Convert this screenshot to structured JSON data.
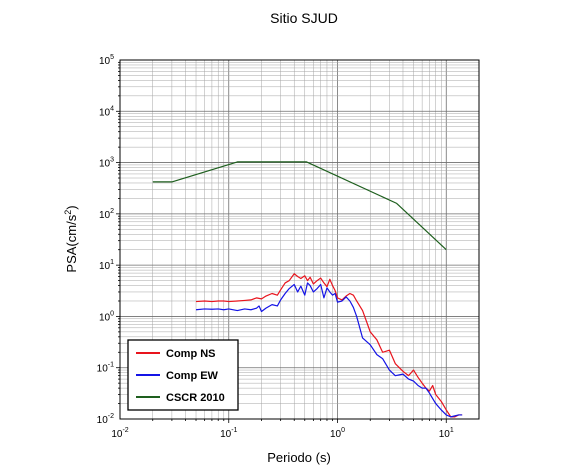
{
  "chart_data": {
    "type": "line",
    "title": "Sitio SJUD",
    "xlabel": "Periodo (s)",
    "ylabel": "PSA(cm/s",
    "ylabel_sup": "2",
    "ylabel_close": ")",
    "x_scale": "log",
    "y_scale": "log",
    "xlim": [
      0.01,
      20
    ],
    "ylim": [
      0.01,
      100000
    ],
    "grid": true,
    "legend_position": "bottom-left",
    "x_ticks": [
      {
        "base": "10",
        "exp": "-2",
        "value": 0.01
      },
      {
        "base": "10",
        "exp": "-1",
        "value": 0.1
      },
      {
        "base": "10",
        "exp": "0",
        "value": 1
      },
      {
        "base": "10",
        "exp": "1",
        "value": 10
      }
    ],
    "y_ticks": [
      {
        "base": "10",
        "exp": "-2",
        "value": 0.01
      },
      {
        "base": "10",
        "exp": "-1",
        "value": 0.1
      },
      {
        "base": "10",
        "exp": "0",
        "value": 1
      },
      {
        "base": "10",
        "exp": "1",
        "value": 10
      },
      {
        "base": "10",
        "exp": "2",
        "value": 100
      },
      {
        "base": "10",
        "exp": "3",
        "value": 1000
      },
      {
        "base": "10",
        "exp": "4",
        "value": 10000
      },
      {
        "base": "10",
        "exp": "5",
        "value": 100000
      }
    ],
    "series": [
      {
        "name": "Comp NS",
        "color": "#e8141d",
        "x": [
          0.05,
          0.06,
          0.07,
          0.08,
          0.09,
          0.1,
          0.12,
          0.14,
          0.16,
          0.18,
          0.2,
          0.22,
          0.25,
          0.28,
          0.3,
          0.33,
          0.36,
          0.4,
          0.43,
          0.46,
          0.5,
          0.53,
          0.56,
          0.6,
          0.65,
          0.7,
          0.75,
          0.8,
          0.85,
          0.9,
          0.95,
          1.0,
          1.1,
          1.2,
          1.3,
          1.4,
          1.5,
          1.7,
          2.0,
          2.3,
          2.6,
          3.0,
          3.4,
          4.0,
          4.5,
          5.0,
          5.5,
          6.0,
          6.5,
          7.0,
          7.5,
          8.0,
          9.0,
          10.0,
          11.0,
          12.0,
          13.0,
          14.0
        ],
        "values": [
          1.95,
          2.0,
          1.95,
          2.0,
          2.0,
          1.95,
          2.0,
          2.05,
          2.1,
          2.3,
          2.2,
          2.5,
          2.8,
          2.6,
          3.3,
          4.5,
          5.0,
          6.8,
          6.0,
          5.5,
          6.2,
          5.0,
          5.8,
          4.3,
          5.0,
          5.6,
          4.5,
          3.8,
          5.3,
          4.0,
          3.2,
          2.3,
          2.1,
          2.5,
          2.8,
          2.6,
          2.0,
          1.3,
          0.5,
          0.35,
          0.2,
          0.22,
          0.12,
          0.085,
          0.07,
          0.09,
          0.065,
          0.05,
          0.04,
          0.035,
          0.045,
          0.03,
          0.022,
          0.015,
          0.011,
          0.011,
          0.012,
          0.012
        ]
      },
      {
        "name": "Comp EW",
        "color": "#1414e6",
        "x": [
          0.05,
          0.06,
          0.07,
          0.08,
          0.09,
          0.1,
          0.12,
          0.14,
          0.16,
          0.18,
          0.19,
          0.2,
          0.22,
          0.25,
          0.28,
          0.3,
          0.33,
          0.36,
          0.4,
          0.43,
          0.46,
          0.5,
          0.53,
          0.56,
          0.6,
          0.65,
          0.7,
          0.75,
          0.8,
          0.85,
          0.9,
          0.95,
          1.0,
          1.1,
          1.2,
          1.3,
          1.4,
          1.5,
          1.7,
          2.0,
          2.3,
          2.6,
          3.0,
          3.4,
          4.0,
          4.5,
          5.0,
          5.5,
          6.0,
          6.5,
          7.0,
          7.5,
          8.0,
          9.0,
          10.0,
          11.0,
          12.0,
          13.0,
          14.0
        ],
        "values": [
          1.35,
          1.4,
          1.38,
          1.4,
          1.35,
          1.4,
          1.3,
          1.4,
          1.35,
          1.45,
          1.6,
          1.25,
          1.45,
          1.7,
          1.6,
          2.1,
          2.8,
          3.5,
          4.2,
          3.0,
          3.9,
          2.6,
          4.5,
          4.0,
          3.0,
          3.5,
          4.2,
          2.3,
          3.6,
          3.0,
          2.6,
          2.8,
          1.9,
          2.0,
          2.4,
          2.0,
          1.5,
          1.0,
          0.38,
          0.28,
          0.18,
          0.15,
          0.09,
          0.07,
          0.075,
          0.06,
          0.055,
          0.045,
          0.04,
          0.04,
          0.032,
          0.025,
          0.02,
          0.015,
          0.012,
          0.011,
          0.0115,
          0.012,
          0.012
        ]
      },
      {
        "name": "CSCR 2010",
        "color": "#1e5f1e",
        "x": [
          0.02,
          0.03,
          0.12,
          0.52,
          3.5,
          10.0
        ],
        "values": [
          420,
          420,
          1030,
          1030,
          160,
          20
        ]
      }
    ]
  }
}
